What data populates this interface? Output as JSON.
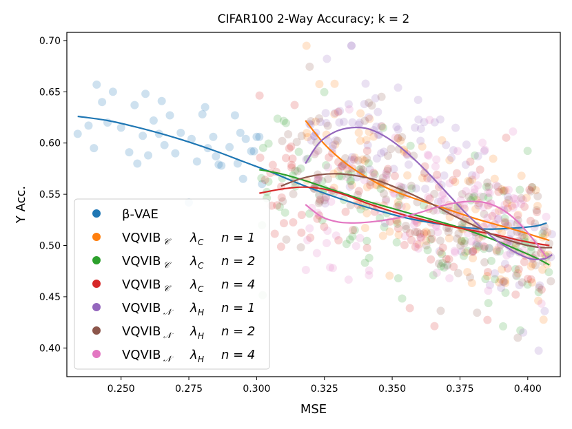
{
  "chart_data": {
    "type": "scatter",
    "title": "CIFAR100 2-Way Accuracy; k = 2",
    "xlabel": "MSE",
    "ylabel": "Y Acc.",
    "xlim": [
      0.23,
      0.412
    ],
    "ylim": [
      0.372,
      0.708
    ],
    "x_ticks": [
      "0.250",
      "0.275",
      "0.300",
      "0.325",
      "0.350",
      "0.375",
      "0.400"
    ],
    "y_ticks": [
      "0.40",
      "0.45",
      "0.50",
      "0.55",
      "0.60",
      "0.65",
      "0.70"
    ],
    "legend_position": "lower-left",
    "series": [
      {
        "name": "β-VAE",
        "label_main": "β-VAE",
        "color": "#1f77b4",
        "x": [
          0.234,
          0.238,
          0.24,
          0.241,
          0.243,
          0.245,
          0.247,
          0.25,
          0.253,
          0.255,
          0.256,
          0.258,
          0.259,
          0.26,
          0.262,
          0.264,
          0.265,
          0.266,
          0.268,
          0.27,
          0.272,
          0.275,
          0.276,
          0.278,
          0.28,
          0.281,
          0.282,
          0.284,
          0.285,
          0.286,
          0.287,
          0.29,
          0.292,
          0.293,
          0.294,
          0.295,
          0.296,
          0.298,
          0.299,
          0.3,
          0.301,
          0.302
        ],
        "y": [
          0.609,
          0.617,
          0.595,
          0.657,
          0.64,
          0.62,
          0.65,
          0.615,
          0.591,
          0.637,
          0.58,
          0.607,
          0.648,
          0.588,
          0.622,
          0.609,
          0.641,
          0.598,
          0.627,
          0.59,
          0.61,
          0.542,
          0.604,
          0.582,
          0.628,
          0.635,
          0.595,
          0.606,
          0.587,
          0.579,
          0.578,
          0.596,
          0.627,
          0.58,
          0.61,
          0.565,
          0.604,
          0.592,
          0.592,
          0.606,
          0.606,
          0.56
        ],
        "trend_x": [
          0.234,
          0.245,
          0.255,
          0.265,
          0.275,
          0.285,
          0.295,
          0.305,
          0.315,
          0.325,
          0.335,
          0.345,
          0.355,
          0.365,
          0.375,
          0.385,
          0.395,
          0.403,
          0.407
        ],
        "trend_y": [
          0.626,
          0.622,
          0.616,
          0.609,
          0.601,
          0.592,
          0.582,
          0.572,
          0.561,
          0.551,
          0.542,
          0.534,
          0.527,
          0.522,
          0.518,
          0.516,
          0.517,
          0.519,
          0.522
        ]
      },
      {
        "name": "VQVIB_C λ_C n=1",
        "label_main": "VQVIB",
        "label_sub": "𝒞",
        "label_lambda": "λ",
        "label_lambda_sub": "C",
        "label_n": "n = 1",
        "color": "#ff7f0e",
        "trend_x": [
          0.318,
          0.325,
          0.333,
          0.341,
          0.349,
          0.357,
          0.365,
          0.373,
          0.381,
          0.389,
          0.397,
          0.403,
          0.408
        ],
        "trend_y": [
          0.622,
          0.599,
          0.58,
          0.566,
          0.555,
          0.547,
          0.54,
          0.533,
          0.526,
          0.52,
          0.514,
          0.509,
          0.505
        ]
      },
      {
        "name": "VQVIB_C λ_C n=2",
        "label_main": "VQVIB",
        "label_sub": "𝒞",
        "label_lambda": "λ",
        "label_lambda_sub": "C",
        "label_n": "n = 2",
        "color": "#2ca02c",
        "trend_x": [
          0.301,
          0.309,
          0.317,
          0.325,
          0.333,
          0.341,
          0.349,
          0.357,
          0.365,
          0.373,
          0.381,
          0.389,
          0.397,
          0.403,
          0.408
        ],
        "trend_y": [
          0.574,
          0.57,
          0.564,
          0.557,
          0.55,
          0.543,
          0.537,
          0.531,
          0.525,
          0.519,
          0.512,
          0.504,
          0.495,
          0.488,
          0.481
        ]
      },
      {
        "name": "VQVIB_C λ_C n=4",
        "label_main": "VQVIB",
        "label_sub": "𝒞",
        "label_lambda": "λ",
        "label_lambda_sub": "C",
        "label_n": "n = 4",
        "color": "#d62728",
        "trend_x": [
          0.301,
          0.309,
          0.317,
          0.325,
          0.333,
          0.341,
          0.349,
          0.357,
          0.365,
          0.373,
          0.381,
          0.389,
          0.397,
          0.403,
          0.408
        ],
        "trend_y": [
          0.551,
          0.555,
          0.557,
          0.555,
          0.549,
          0.541,
          0.534,
          0.528,
          0.523,
          0.518,
          0.514,
          0.51,
          0.505,
          0.502,
          0.5
        ]
      },
      {
        "name": "VQVIB_N λ_H n=1",
        "label_main": "VQVIB",
        "label_sub": "𝒩",
        "label_lambda": "λ",
        "label_lambda_sub": "H",
        "label_n": "n = 1",
        "color": "#9467bd",
        "trend_x": [
          0.318,
          0.323,
          0.329,
          0.335,
          0.341,
          0.347,
          0.353,
          0.359,
          0.365,
          0.371,
          0.377,
          0.383,
          0.389,
          0.395,
          0.401,
          0.406,
          0.409
        ],
        "trend_y": [
          0.58,
          0.6,
          0.611,
          0.615,
          0.614,
          0.607,
          0.596,
          0.582,
          0.566,
          0.549,
          0.532,
          0.517,
          0.504,
          0.494,
          0.487,
          0.487,
          0.491
        ]
      },
      {
        "name": "VQVIB_N λ_H n=2",
        "label_main": "VQVIB",
        "label_sub": "𝒩",
        "label_lambda": "λ",
        "label_lambda_sub": "H",
        "label_n": "n = 2",
        "color": "#8c564b",
        "trend_x": [
          0.309,
          0.316,
          0.323,
          0.33,
          0.337,
          0.344,
          0.351,
          0.358,
          0.365,
          0.372,
          0.379,
          0.386,
          0.393,
          0.4,
          0.405,
          0.409
        ],
        "trend_y": [
          0.558,
          0.565,
          0.569,
          0.57,
          0.568,
          0.564,
          0.557,
          0.549,
          0.54,
          0.53,
          0.521,
          0.512,
          0.505,
          0.5,
          0.498,
          0.498
        ]
      },
      {
        "name": "VQVIB_N λ_H n=4",
        "label_main": "VQVIB",
        "label_sub": "𝒩",
        "label_lambda": "λ",
        "label_lambda_sub": "H",
        "label_n": "n = 4",
        "color": "#e377c2",
        "trend_x": [
          0.318,
          0.324,
          0.33,
          0.336,
          0.342,
          0.348,
          0.354,
          0.36,
          0.366,
          0.372,
          0.378,
          0.384,
          0.39,
          0.396,
          0.402,
          0.407
        ],
        "trend_y": [
          0.54,
          0.528,
          0.523,
          0.522,
          0.523,
          0.525,
          0.528,
          0.532,
          0.537,
          0.541,
          0.543,
          0.542,
          0.536,
          0.524,
          0.506,
          0.488
        ]
      }
    ]
  }
}
